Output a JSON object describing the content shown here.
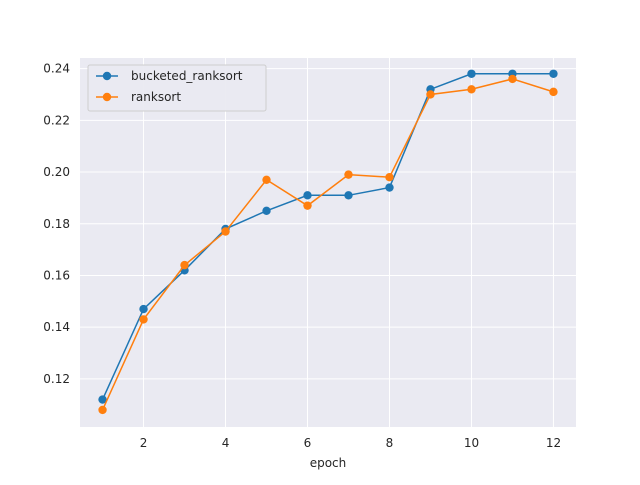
{
  "chart_data": {
    "type": "line",
    "title": "",
    "xlabel": "epoch",
    "ylabel": "",
    "x": [
      1,
      2,
      3,
      4,
      5,
      6,
      7,
      8,
      9,
      10,
      11,
      12
    ],
    "xlim": [
      0.45,
      12.55
    ],
    "ylim": [
      0.1014,
      0.2441
    ],
    "xticks": [
      2,
      4,
      6,
      8,
      10,
      12
    ],
    "yticks": [
      0.12,
      0.14,
      0.16,
      0.18,
      0.2,
      0.22,
      0.24
    ],
    "xtick_labels": [
      "2",
      "4",
      "6",
      "8",
      "10",
      "12"
    ],
    "ytick_labels": [
      "0.12",
      "0.14",
      "0.16",
      "0.18",
      "0.20",
      "0.22",
      "0.24"
    ],
    "grid": true,
    "legend_position": "top-left",
    "series": [
      {
        "name": "bucketed_ranksort",
        "color": "#1f77b4",
        "values": [
          0.112,
          0.147,
          0.162,
          0.178,
          0.185,
          0.191,
          0.191,
          0.194,
          0.232,
          0.238,
          0.238,
          0.238
        ]
      },
      {
        "name": "ranksort",
        "color": "#ff7f0e",
        "values": [
          0.108,
          0.143,
          0.164,
          0.177,
          0.197,
          0.187,
          0.199,
          0.198,
          0.23,
          0.232,
          0.236,
          0.231
        ]
      }
    ]
  }
}
